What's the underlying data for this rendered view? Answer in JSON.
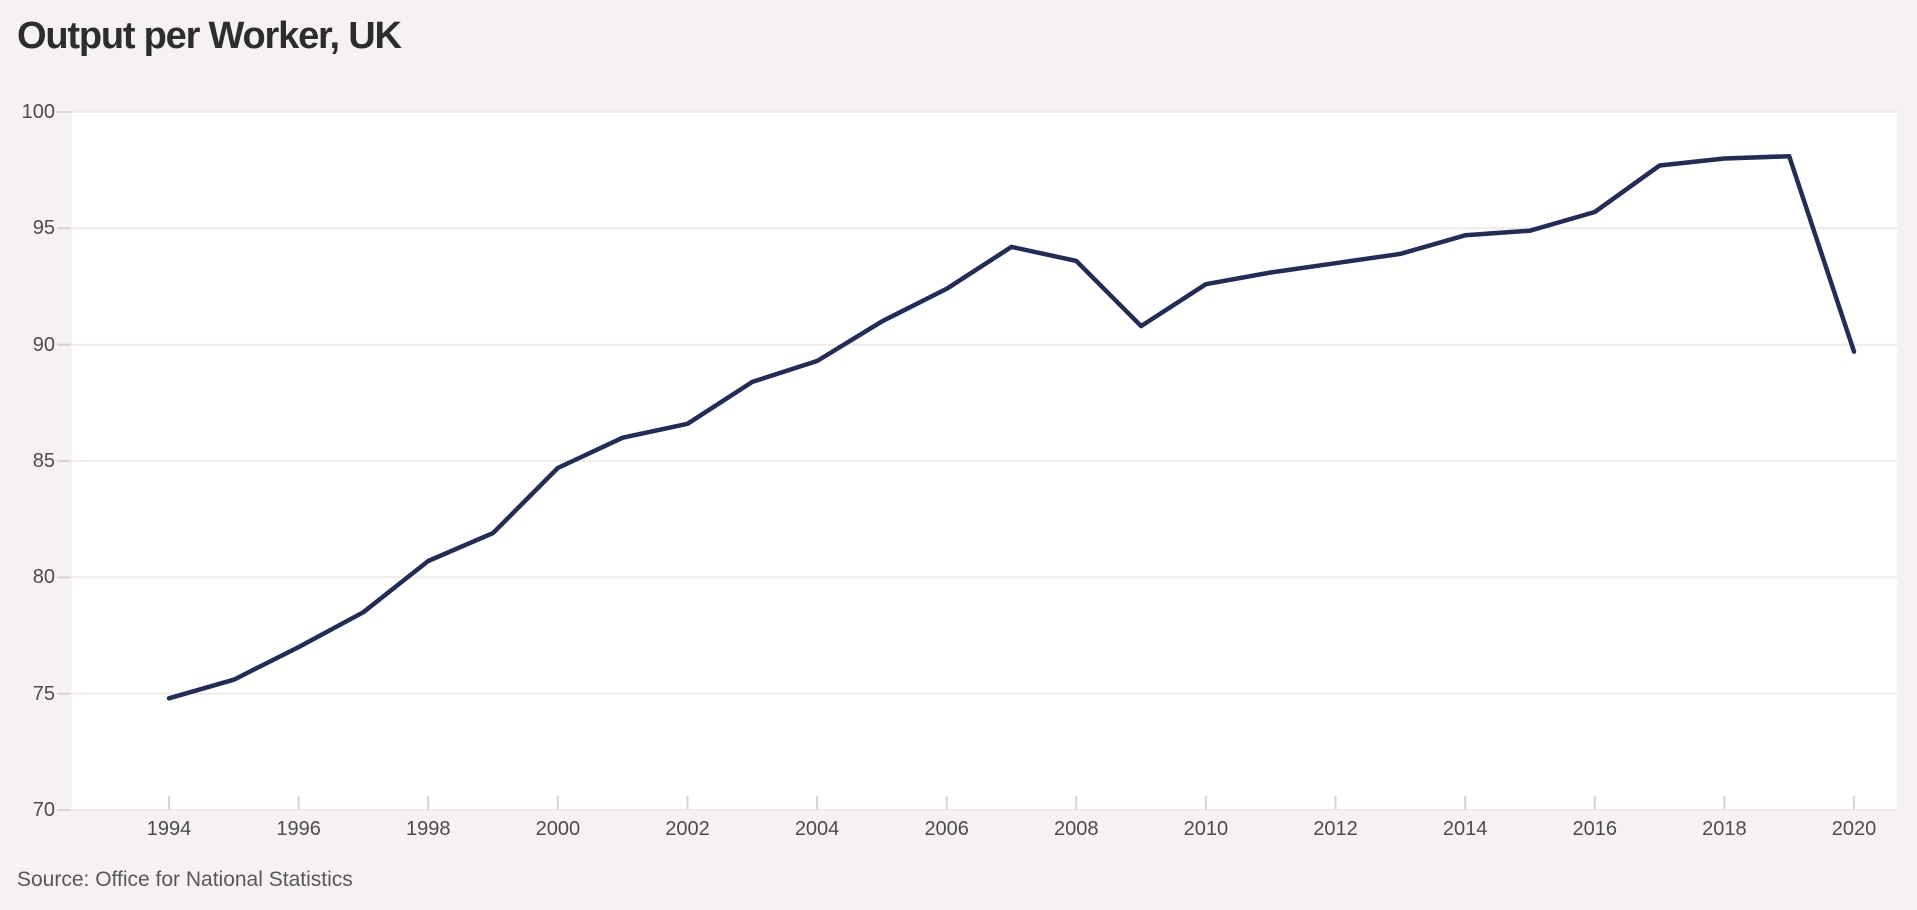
{
  "title": "Output per Worker, UK",
  "source": "Source: Office for National Statistics",
  "colors": {
    "background": "#f7f2f2",
    "plot_background": "#ffffff",
    "line": "#222c55",
    "gridline": "#f0eae9",
    "tick": "#d9d3d2",
    "axis_text": "#4c4c4c",
    "title_text": "#2d2d2d",
    "source_text": "#585858"
  },
  "chart_data": {
    "type": "line",
    "title": "Output per Worker, UK",
    "xlabel": "",
    "ylabel": "",
    "x": [
      1994,
      1995,
      1996,
      1997,
      1998,
      1999,
      2000,
      2001,
      2002,
      2003,
      2004,
      2005,
      2006,
      2007,
      2008,
      2009,
      2010,
      2011,
      2012,
      2013,
      2014,
      2015,
      2016,
      2017,
      2018,
      2019,
      2020
    ],
    "series": [
      {
        "name": "Output per worker, UK",
        "values": [
          74.8,
          75.6,
          77.0,
          78.5,
          80.7,
          81.9,
          84.7,
          86.0,
          86.6,
          88.4,
          89.3,
          91.0,
          92.4,
          94.2,
          93.6,
          90.8,
          92.6,
          93.1,
          93.5,
          93.9,
          94.7,
          94.9,
          95.7,
          97.7,
          98.0,
          98.1,
          89.7
        ]
      }
    ],
    "ylim": [
      70,
      100
    ],
    "y_ticks": [
      70,
      75,
      80,
      85,
      90,
      95,
      100
    ],
    "x_ticks": [
      1994,
      1996,
      1998,
      2000,
      2002,
      2004,
      2006,
      2008,
      2010,
      2012,
      2014,
      2016,
      2018,
      2020
    ],
    "grid": "horizontal",
    "legend": "none",
    "source": "Source: Office for National Statistics"
  }
}
